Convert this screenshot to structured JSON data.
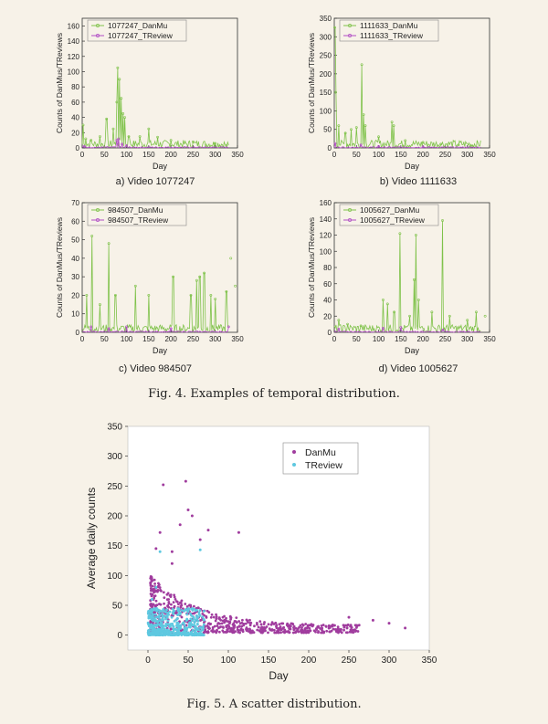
{
  "captions": {
    "fig4": "Fig. 4.  Examples of temporal distribution.",
    "fig5": "Fig. 5.  A scatter distribution."
  },
  "sub_captions": [
    "a) Video 1077247",
    "b) Video 1111633",
    "c) Video 984507",
    "d)  Video 1005627"
  ],
  "colors": {
    "danmu": "#7fc24a",
    "treview": "#b04cc4",
    "scatter_danmu": "#a03c9e",
    "scatter_treview": "#5ec8e0"
  },
  "chart_data": [
    {
      "type": "line",
      "xlabel": "Day",
      "ylabel": "Counts of DanMus/TReviews",
      "xlim": [
        0,
        350
      ],
      "ylim": [
        0,
        170
      ],
      "xticks": [
        0,
        50,
        100,
        150,
        200,
        250,
        300,
        350
      ],
      "yticks": [
        0,
        20,
        40,
        60,
        80,
        100,
        120,
        140,
        160
      ],
      "series": [
        {
          "name": "1077247_DanMu",
          "peaks": [
            [
              2,
              30
            ],
            [
              8,
              12
            ],
            [
              20,
              10
            ],
            [
              40,
              15
            ],
            [
              55,
              38
            ],
            [
              70,
              25
            ],
            [
              78,
              60
            ],
            [
              80,
              105
            ],
            [
              84,
              90
            ],
            [
              88,
              65
            ],
            [
              92,
              45
            ],
            [
              96,
              40
            ],
            [
              105,
              15
            ],
            [
              130,
              15
            ],
            [
              150,
              25
            ],
            [
              170,
              14
            ],
            [
              200,
              10
            ],
            [
              250,
              8
            ],
            [
              300,
              6
            ],
            [
              325,
              3
            ]
          ]
        },
        {
          "name": "1077247_TReview",
          "peaks": [
            [
              5,
              2
            ],
            [
              78,
              10
            ],
            [
              82,
              12
            ],
            [
              90,
              5
            ],
            [
              100,
              3
            ]
          ]
        }
      ]
    },
    {
      "type": "line",
      "xlabel": "Day",
      "ylabel": "Counts of DanMus/TReviews",
      "xlim": [
        0,
        350
      ],
      "ylim": [
        0,
        350
      ],
      "xticks": [
        0,
        50,
        100,
        150,
        200,
        250,
        300,
        350
      ],
      "yticks": [
        0,
        50,
        100,
        150,
        200,
        250,
        300,
        350
      ],
      "series": [
        {
          "name": "1111633_DanMu",
          "peaks": [
            [
              1,
              325
            ],
            [
              3,
              150
            ],
            [
              10,
              60
            ],
            [
              25,
              40
            ],
            [
              38,
              50
            ],
            [
              50,
              55
            ],
            [
              62,
              225
            ],
            [
              66,
              90
            ],
            [
              70,
              60
            ],
            [
              100,
              30
            ],
            [
              130,
              70
            ],
            [
              134,
              60
            ],
            [
              160,
              20
            ],
            [
              200,
              15
            ],
            [
              240,
              10
            ],
            [
              280,
              8
            ],
            [
              310,
              5
            ]
          ]
        },
        {
          "name": "1111633_TReview",
          "peaks": [
            [
              2,
              12
            ],
            [
              60,
              8
            ],
            [
              100,
              4
            ],
            [
              200,
              3
            ]
          ]
        }
      ]
    },
    {
      "type": "line",
      "xlabel": "Day",
      "ylabel": "Counts of DanMus/TReviews",
      "xlim": [
        0,
        350
      ],
      "ylim": [
        0,
        70
      ],
      "xticks": [
        0,
        50,
        100,
        150,
        200,
        250,
        300,
        350
      ],
      "yticks": [
        0,
        10,
        20,
        30,
        40,
        50,
        60,
        70
      ],
      "series": [
        {
          "name": "984507_DanMu",
          "peaks": [
            [
              10,
              20
            ],
            [
              22,
              52
            ],
            [
              40,
              15
            ],
            [
              60,
              48
            ],
            [
              75,
              20
            ],
            [
              120,
              25
            ],
            [
              150,
              20
            ],
            [
              205,
              30
            ],
            [
              245,
              20
            ],
            [
              258,
              28
            ],
            [
              265,
              30
            ],
            [
              275,
              32
            ],
            [
              290,
              20
            ],
            [
              300,
              18
            ],
            [
              325,
              22
            ],
            [
              335,
              40
            ],
            [
              345,
              25
            ]
          ]
        },
        {
          "name": "984507_TReview",
          "peaks": [
            [
              20,
              3
            ],
            [
              60,
              2
            ],
            [
              100,
              3
            ],
            [
              200,
              2
            ],
            [
              330,
              3
            ]
          ]
        }
      ]
    },
    {
      "type": "line",
      "xlabel": "Day",
      "ylabel": "Counts of DanMus/TReviews",
      "xlim": [
        0,
        350
      ],
      "ylim": [
        0,
        160
      ],
      "xticks": [
        0,
        50,
        100,
        150,
        200,
        250,
        300,
        350
      ],
      "yticks": [
        0,
        20,
        40,
        60,
        80,
        100,
        120,
        140,
        160
      ],
      "series": [
        {
          "name": "1005627_DanMu",
          "peaks": [
            [
              10,
              15
            ],
            [
              30,
              10
            ],
            [
              60,
              8
            ],
            [
              110,
              40
            ],
            [
              120,
              35
            ],
            [
              135,
              25
            ],
            [
              148,
              122
            ],
            [
              170,
              20
            ],
            [
              180,
              65
            ],
            [
              184,
              120
            ],
            [
              190,
              40
            ],
            [
              220,
              25
            ],
            [
              244,
              138
            ],
            [
              260,
              20
            ],
            [
              300,
              15
            ],
            [
              320,
              25
            ],
            [
              340,
              20
            ]
          ]
        },
        {
          "name": "1005627_TReview",
          "peaks": [
            [
              10,
              4
            ],
            [
              110,
              5
            ],
            [
              150,
              6
            ],
            [
              245,
              3
            ]
          ]
        }
      ]
    },
    {
      "type": "scatter",
      "xlabel": "Day",
      "ylabel": "Average daily counts",
      "xlim": [
        -25,
        350
      ],
      "ylim": [
        -25,
        350
      ],
      "xticks": [
        0,
        50,
        100,
        150,
        200,
        250,
        300,
        350
      ],
      "yticks": [
        0,
        50,
        100,
        150,
        200,
        250,
        300,
        350
      ],
      "series": [
        {
          "name": "DanMu",
          "outliers": [
            [
              19,
              252
            ],
            [
              47,
              258
            ],
            [
              50,
              210
            ],
            [
              55,
              200
            ],
            [
              40,
              185
            ],
            [
              75,
              176
            ],
            [
              113,
              172
            ],
            [
              15,
              172
            ],
            [
              65,
              160
            ],
            [
              10,
              145
            ],
            [
              30,
              140
            ],
            [
              30,
              120
            ],
            [
              250,
              30
            ],
            [
              300,
              20
            ],
            [
              320,
              12
            ],
            [
              280,
              25
            ]
          ]
        },
        {
          "name": "TReview",
          "outliers": [
            [
              15,
              140
            ],
            [
              65,
              143
            ],
            [
              10,
              80
            ],
            [
              5,
              60
            ],
            [
              20,
              40
            ]
          ]
        }
      ]
    }
  ]
}
